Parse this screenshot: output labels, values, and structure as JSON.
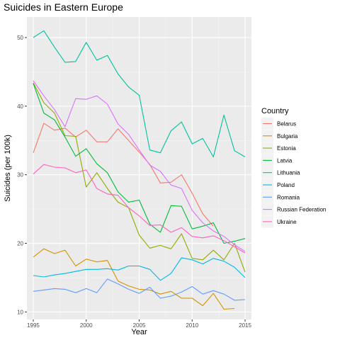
{
  "chart_data": {
    "type": "line",
    "title": "Suicides in Eastern Europe",
    "xlabel": "Year",
    "ylabel": "Suicides (per 100k)",
    "xlim": [
      1994.4,
      2015.6
    ],
    "ylim": [
      8.9,
      53.0
    ],
    "xticks": [
      1995,
      2000,
      2005,
      2010,
      2015
    ],
    "yticks": [
      10,
      20,
      30,
      40,
      50
    ],
    "grid": true,
    "legend_position": "right",
    "legend_title": "Country",
    "x": [
      1995,
      1996,
      1997,
      1998,
      1999,
      2000,
      2001,
      2002,
      2003,
      2004,
      2005,
      2006,
      2007,
      2008,
      2009,
      2010,
      2011,
      2012,
      2013,
      2014,
      2015
    ],
    "series": [
      {
        "name": "Belarus",
        "color": "#F8766D",
        "values": [
          33.2,
          37.5,
          36.5,
          36.8,
          35.5,
          36.5,
          34.8,
          34.8,
          36.7,
          35.0,
          33.3,
          31.5,
          28.8,
          28.9,
          30.0,
          27.3,
          24.3,
          22.5,
          null,
          null,
          null
        ]
      },
      {
        "name": "Bulgaria",
        "color": "#D39200",
        "values": [
          18.0,
          19.2,
          18.5,
          19.0,
          16.7,
          17.7,
          17.3,
          17.5,
          14.5,
          13.8,
          13.3,
          13.2,
          12.6,
          13.0,
          12.0,
          12.0,
          10.9,
          12.7,
          10.4,
          10.5,
          null
        ]
      },
      {
        "name": "Estonia",
        "color": "#93AA00",
        "values": [
          43.4,
          40.5,
          39.0,
          35.7,
          35.6,
          28.2,
          30.3,
          28.0,
          26.0,
          25.2,
          21.2,
          19.3,
          19.7,
          19.2,
          21.4,
          17.8,
          17.6,
          19.0,
          17.6,
          20.0,
          15.8
        ]
      },
      {
        "name": "Latvia",
        "color": "#00BA38",
        "values": [
          43.3,
          39.0,
          38.0,
          35.5,
          32.7,
          33.8,
          31.6,
          30.3,
          27.5,
          26.0,
          26.3,
          22.8,
          21.6,
          25.5,
          25.4,
          22.1,
          22.5,
          23.0,
          20.0,
          20.3,
          20.7
        ]
      },
      {
        "name": "Lithuania",
        "color": "#00C19F",
        "values": [
          50.0,
          51.0,
          48.6,
          46.4,
          46.5,
          49.3,
          46.7,
          47.4,
          44.7,
          42.8,
          41.6,
          33.6,
          33.2,
          36.4,
          37.7,
          34.5,
          35.3,
          32.6,
          38.7,
          33.5,
          32.6
        ]
      },
      {
        "name": "Poland",
        "color": "#00B9E3",
        "values": [
          15.3,
          15.1,
          15.4,
          15.6,
          15.9,
          16.2,
          16.2,
          16.3,
          16.1,
          16.7,
          16.7,
          16.2,
          14.6,
          15.6,
          17.9,
          17.6,
          17.0,
          17.8,
          17.4,
          16.5,
          15.0
        ]
      },
      {
        "name": "Romania",
        "color": "#619CFF",
        "values": [
          13.0,
          13.2,
          13.4,
          13.3,
          12.8,
          13.4,
          12.8,
          14.8,
          14.1,
          13.3,
          12.7,
          13.6,
          12.0,
          12.3,
          12.9,
          13.7,
          12.6,
          13.1,
          12.6,
          11.7,
          11.8
        ]
      },
      {
        "name": "Russian Federation",
        "color": "#DB72FB",
        "values": [
          43.7,
          41.5,
          39.5,
          37.0,
          41.1,
          41.0,
          41.5,
          40.3,
          37.4,
          35.9,
          33.6,
          31.4,
          30.5,
          28.5,
          28.0,
          24.8,
          23.0,
          21.8,
          21.0,
          19.8,
          18.8
        ]
      },
      {
        "name": "Ukraine",
        "color": "#FF61C3",
        "values": [
          30.1,
          31.5,
          31.1,
          31.0,
          30.3,
          30.7,
          28.0,
          27.2,
          27.0,
          25.2,
          24.0,
          22.6,
          22.7,
          21.6,
          22.3,
          21.0,
          20.8,
          21.1,
          20.4,
          19.5,
          18.6
        ]
      }
    ]
  }
}
